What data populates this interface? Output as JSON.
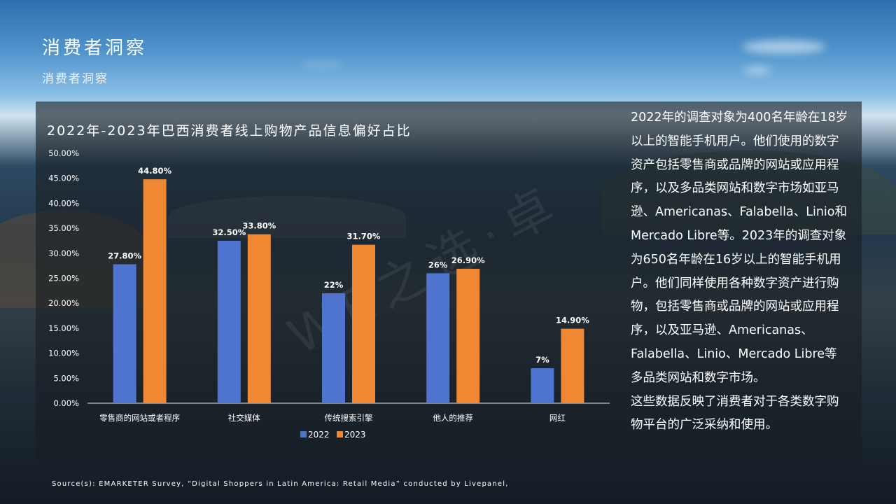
{
  "page": {
    "title": "消费者洞察",
    "subtitle": "消费者洞察",
    "watermark": "WE之选·卓",
    "source": "Source(s): EMARKETER Survey, “Digital Shoppers in Latin America: Retail Media” conducted by Livepanel,"
  },
  "description": [
    "2022年的调查对象为400名年龄在18岁以上的智能手机用户。他们使用的数字资产包括零售商或品牌的网站或应用程序，以及多品类网站和数字市场如亚马逊、Americanas、Falabella、Linio和Mercado Libre等。2023年的调查对象为650名年龄在16岁以上的智能手机用户。他们同样使用各种数字资产进行购物，包括零售商或品牌的网站或应用程序，以及亚马逊、Americanas、Falabella、Linio、Mercado Libre等多品类网站和数字市场。",
    "这些数据反映了消费者对于各类数字购物平台的广泛采纳和使用。"
  ],
  "colors": {
    "series_2022": "#4f74cf",
    "series_2023": "#ef8733",
    "axis": "#e6e6e6"
  },
  "chart_data": {
    "type": "bar",
    "title": "2022年-2023年巴西消费者线上购物产品信息偏好占比",
    "categories": [
      "零售商的网站或者程序",
      "社交媒体",
      "传统搜索引擎",
      "他人的推荐",
      "网红"
    ],
    "series": [
      {
        "name": "2022",
        "values": [
          27.8,
          32.5,
          22,
          26,
          7
        ],
        "labels": [
          "27.80%",
          "32.50%",
          "22%",
          "26%",
          "7%"
        ]
      },
      {
        "name": "2023",
        "values": [
          44.8,
          33.8,
          31.7,
          26.9,
          14.9
        ],
        "labels": [
          "44.80%",
          "33.80%",
          "31.70%",
          "26.90%",
          "14.90%"
        ]
      }
    ],
    "y_ticks": [
      "0.00%",
      "5.00%",
      "10.00%",
      "15.00%",
      "20.00%",
      "25.00%",
      "30.00%",
      "35.00%",
      "40.00%",
      "45.00%",
      "50.00%"
    ],
    "ylim": [
      0,
      50
    ],
    "grid": false,
    "legend_position": "bottom"
  }
}
